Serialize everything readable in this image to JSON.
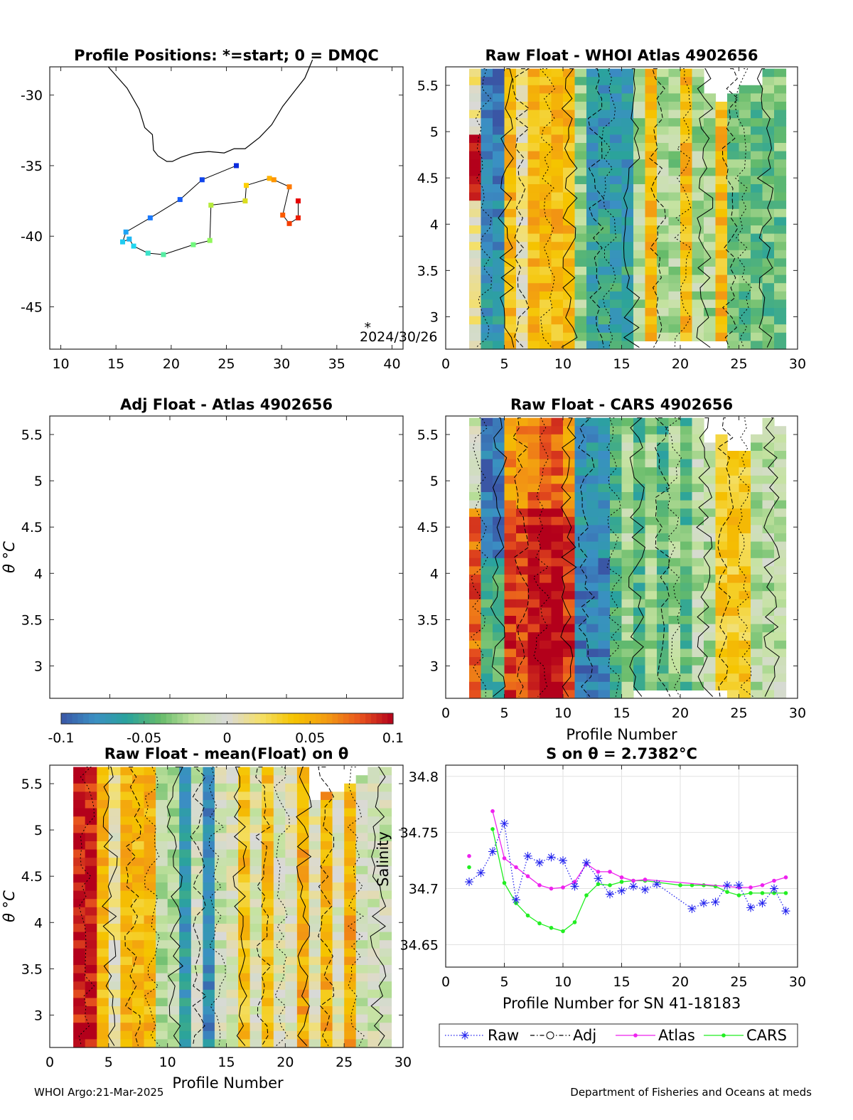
{
  "footer": {
    "left": "WHOI Argo:21-Mar-2025",
    "right": "Department of Fisheries and Oceans at meds"
  },
  "colors": {
    "raw": "#2222ee",
    "atlas": "#ee22ee",
    "cars": "#22ee22",
    "coast": "#000000",
    "colormap": [
      "#3a56a5",
      "#3b8fc4",
      "#2aa39c",
      "#66bb6a",
      "#c5e3a0",
      "#d9d9d9",
      "#f4e06a",
      "#f5c400",
      "#f39c12",
      "#e8541e",
      "#b3001b"
    ]
  },
  "chart_data": [
    {
      "id": "map",
      "type": "scatter",
      "title": "Profile Positions: *=start; 0 = DMQC",
      "xlim": [
        9,
        41
      ],
      "ylim": [
        -48,
        -28
      ],
      "xticks": [
        "10",
        "15",
        "20",
        "25",
        "30",
        "35",
        "40"
      ],
      "yticks": [
        "-30",
        "-35",
        "-40",
        "-45"
      ],
      "annotation": "2024/30/26",
      "track": [
        [
          25.9,
          -35.0
        ],
        [
          22.8,
          -36.0
        ],
        [
          20.8,
          -37.4
        ],
        [
          18.1,
          -38.7
        ],
        [
          15.9,
          -39.7
        ],
        [
          15.6,
          -40.4
        ],
        [
          16.2,
          -40.2
        ],
        [
          16.6,
          -40.7
        ],
        [
          17.9,
          -41.2
        ],
        [
          19.3,
          -41.3
        ],
        [
          22.0,
          -40.6
        ],
        [
          23.5,
          -40.3
        ],
        [
          23.6,
          -37.8
        ],
        [
          26.7,
          -37.5
        ],
        [
          26.8,
          -36.4
        ],
        [
          28.9,
          -35.9
        ],
        [
          29.3,
          -36.0
        ],
        [
          30.7,
          -36.5
        ],
        [
          30.1,
          -38.5
        ],
        [
          30.7,
          -39.1
        ],
        [
          31.5,
          -38.7
        ],
        [
          31.5,
          -37.5
        ]
      ],
      "coastline": [
        [
          14.3,
          -28.0
        ],
        [
          16.0,
          -29.5
        ],
        [
          17.1,
          -31.0
        ],
        [
          17.6,
          -32.3
        ],
        [
          18.3,
          -32.8
        ],
        [
          18.4,
          -33.9
        ],
        [
          18.8,
          -34.3
        ],
        [
          19.6,
          -34.7
        ],
        [
          20.1,
          -34.7
        ],
        [
          20.9,
          -34.4
        ],
        [
          22.1,
          -34.1
        ],
        [
          23.4,
          -34.0
        ],
        [
          24.8,
          -34.1
        ],
        [
          25.7,
          -33.8
        ],
        [
          26.7,
          -33.8
        ],
        [
          28.0,
          -33.0
        ],
        [
          29.1,
          -32.1
        ],
        [
          30.1,
          -30.8
        ],
        [
          31.1,
          -29.8
        ],
        [
          32.1,
          -28.8
        ],
        [
          32.8,
          -27.5
        ]
      ]
    },
    {
      "id": "raw_whoi",
      "type": "heatmap",
      "title": "Raw Float - WHOI Atlas  4902656",
      "xlabel": "",
      "ylabel": "",
      "xlim": [
        0,
        30
      ],
      "ylim": [
        2.65,
        5.7
      ],
      "xticks": [
        "0",
        "5",
        "10",
        "15",
        "20",
        "25",
        "30"
      ],
      "yticks": [
        "3",
        "3.5",
        "4",
        "4.5",
        "5",
        "5.5"
      ]
    },
    {
      "id": "adj_atlas",
      "type": "heatmap",
      "title": "Adj Float - Atlas  4902656",
      "ylabel": "θ °C",
      "ylim": [
        2.65,
        5.7
      ],
      "yticks": [
        "3",
        "3.5",
        "4",
        "4.5",
        "5",
        "5.5"
      ]
    },
    {
      "id": "raw_cars",
      "type": "heatmap",
      "title": "Raw Float - CARS  4902656",
      "xlabel": "Profile Number",
      "xlim": [
        0,
        30
      ],
      "ylim": [
        2.65,
        5.7
      ],
      "xticks": [
        "0",
        "5",
        "10",
        "15",
        "20",
        "25",
        "30"
      ],
      "yticks": [
        "3",
        "3.5",
        "4",
        "4.5",
        "5",
        "5.5"
      ]
    },
    {
      "id": "colorbar",
      "type": "heatmap",
      "range": [
        -0.1,
        0.1
      ],
      "ticks": [
        "-0.1",
        "-0.05",
        "0",
        "0.05",
        "0.1"
      ]
    },
    {
      "id": "raw_mean",
      "type": "heatmap",
      "title": "Raw Float - mean(Float) on θ",
      "xlabel": "Profile Number",
      "ylabel": "θ °C",
      "xlim": [
        0,
        30
      ],
      "ylim": [
        2.65,
        5.7
      ],
      "xticks": [
        "0",
        "5",
        "10",
        "15",
        "20",
        "25",
        "30"
      ],
      "yticks": [
        "3",
        "3.5",
        "4",
        "4.5",
        "5",
        "5.5"
      ]
    },
    {
      "id": "salinity",
      "type": "line",
      "title": "S on θ = 2.7382°C",
      "xlabel": "Profile Number for SN 41-18183",
      "ylabel": "Salinity",
      "xlim": [
        0,
        30
      ],
      "ylim": [
        34.63,
        34.81
      ],
      "xticks": [
        "0",
        "5",
        "10",
        "15",
        "20",
        "25",
        "30"
      ],
      "yticks": [
        "34.8",
        "34.75",
        "34.7",
        "34.65"
      ],
      "grid": true,
      "legend_position": "bottom",
      "series": [
        {
          "name": "Raw",
          "x": [
            2,
            3,
            4,
            5,
            6,
            7,
            8,
            9,
            10,
            11,
            12,
            13,
            14,
            15,
            16,
            17,
            18,
            21,
            22,
            23,
            24,
            25,
            26,
            27,
            28,
            29
          ],
          "y": [
            34.706,
            34.714,
            34.733,
            34.758,
            34.69,
            34.729,
            34.723,
            34.728,
            34.725,
            34.702,
            34.723,
            34.709,
            34.695,
            34.698,
            34.702,
            34.699,
            34.704,
            34.682,
            34.687,
            34.688,
            34.703,
            34.703,
            34.683,
            34.687,
            34.7,
            34.68
          ]
        },
        {
          "name": "Adj",
          "x": [],
          "y": []
        },
        {
          "name": "Atlas",
          "x": [
            2,
            4,
            5,
            6,
            7,
            8,
            9,
            10,
            11,
            12,
            13,
            14,
            15,
            16,
            17,
            25,
            26,
            27,
            28,
            29
          ],
          "y": [
            34.729,
            34.769,
            34.727,
            34.719,
            34.711,
            34.703,
            34.7,
            34.701,
            34.706,
            34.722,
            34.715,
            34.715,
            34.71,
            34.707,
            34.708,
            34.701,
            34.701,
            34.703,
            34.707,
            34.71
          ]
        },
        {
          "name": "CARS",
          "x": [
            2,
            4,
            5,
            6,
            7,
            8,
            9,
            10,
            11,
            12,
            13,
            14,
            15,
            16,
            17,
            20,
            21,
            22,
            23,
            24,
            25,
            26,
            27,
            28,
            29
          ],
          "y": [
            34.719,
            34.753,
            34.705,
            34.687,
            34.676,
            34.669,
            34.665,
            34.662,
            34.67,
            34.694,
            34.704,
            34.703,
            34.706,
            34.707,
            34.707,
            34.703,
            34.703,
            34.703,
            34.702,
            34.697,
            34.694,
            34.696,
            34.696,
            34.696,
            34.696
          ]
        }
      ]
    }
  ]
}
